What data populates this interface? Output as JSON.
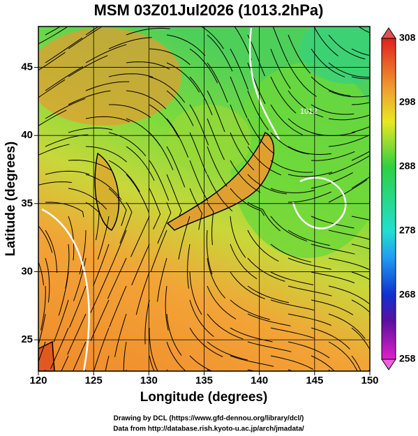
{
  "title": "MSM 03Z01Jul2026 (1013.2hPa)",
  "x_label": "Longitude (degrees)",
  "y_label": "Latitude  (degrees)",
  "xlim": [
    120,
    150
  ],
  "ylim": [
    22.7,
    48
  ],
  "xticks": [
    120,
    125,
    130,
    135,
    140,
    145,
    150
  ],
  "yticks": [
    25,
    30,
    35,
    40,
    45
  ],
  "colorbar": {
    "lim": [
      258,
      308
    ],
    "ticks": [
      258,
      268,
      278,
      288,
      298,
      308
    ]
  },
  "contour_label": "1012",
  "credits": [
    "Drawing by DCL (https://www.gfd-dennou.org/library/dcl/)",
    "Data from http://database.rish.kyoto-u.ac.jp/arch/jmadata/"
  ]
}
